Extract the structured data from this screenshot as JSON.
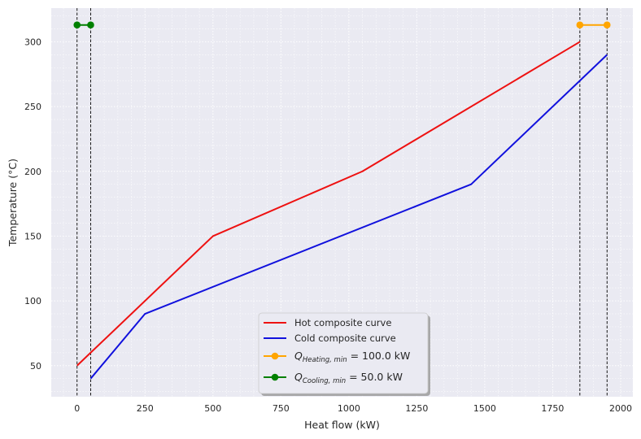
{
  "chart_data": {
    "type": "line",
    "xlabel": "Heat flow (kW)",
    "ylabel": "Temperature (°C)",
    "xlim": [
      -95,
      2045
    ],
    "ylim": [
      26,
      326
    ],
    "xticks": [
      0,
      250,
      500,
      750,
      1000,
      1250,
      1500,
      1750,
      2000
    ],
    "yticks": [
      50,
      100,
      150,
      200,
      250,
      300
    ],
    "grid": true,
    "legend_position": "lower-center",
    "colors": {
      "background": "#eaeaf2",
      "grid": "#ffffff",
      "hot": "#ee1111",
      "cold": "#1111dd",
      "heating": "#ffa500",
      "cooling": "#008000",
      "vline": "#000000"
    },
    "series": [
      {
        "key": "hot",
        "name": "Hot composite curve",
        "x": [
          0,
          500,
          1050,
          1850
        ],
        "y": [
          50,
          150,
          200,
          300
        ]
      },
      {
        "key": "cold",
        "name": "Cold composite curve",
        "x": [
          50,
          250,
          1450,
          1950
        ],
        "y": [
          40,
          90,
          190,
          290
        ]
      },
      {
        "key": "heating",
        "name_main": "Q",
        "name_sub": "Heating, min",
        "name_rest": " = 100.0 kW",
        "marker": "o",
        "x": [
          1850,
          1950
        ],
        "y": [
          313,
          313
        ]
      },
      {
        "key": "cooling",
        "name_main": "Q",
        "name_sub": "Cooling, min",
        "name_rest": " = 50.0 kW",
        "marker": "o",
        "x": [
          0,
          50
        ],
        "y": [
          313,
          313
        ]
      }
    ],
    "vlines": [
      0,
      50,
      1850,
      1950
    ]
  }
}
